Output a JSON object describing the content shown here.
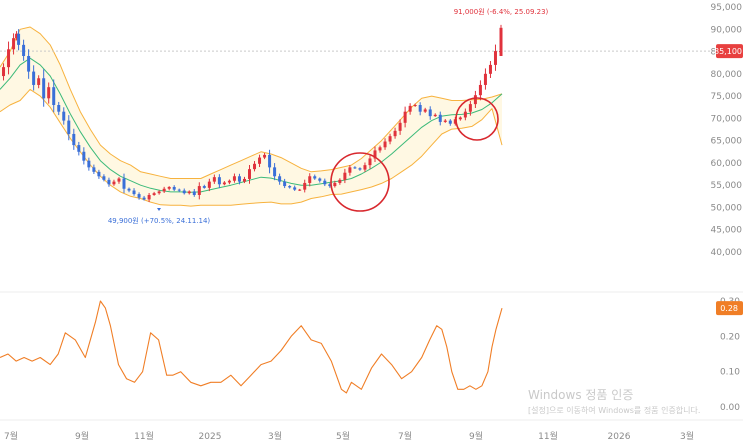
{
  "chart_data": [
    {
      "type": "candlestick",
      "ylim": [
        40000,
        95000
      ],
      "y_ticks": [
        "95,000",
        "90,000",
        "85,000",
        "80,000",
        "75,000",
        "70,000",
        "65,000",
        "60,000",
        "55,000",
        "50,000",
        "45,000",
        "40,000"
      ],
      "x_ticks": [
        "7월",
        "9월",
        "11월",
        "2025",
        "3월",
        "5월",
        "7월",
        "9월",
        "11월",
        "2026",
        "3월"
      ],
      "last_price_label": "85,100",
      "last_price": 85100,
      "high_annotation": "91,000원 (-6.4%, 25.09.23)",
      "low_annotation": "49,900원 (+70.5%, 24.11.14)",
      "series": [
        {
          "x": [
            0,
            5,
            10,
            15,
            18,
            20,
            25,
            30,
            35,
            40,
            45,
            50,
            55,
            60,
            65,
            70,
            75,
            80,
            85,
            90,
            95,
            100,
            105,
            110,
            115,
            120,
            125,
            130,
            135,
            140,
            145,
            150,
            155,
            160,
            165,
            170,
            175,
            180,
            185,
            190,
            195,
            200,
            205,
            210,
            215,
            220,
            225,
            230,
            235,
            240,
            245,
            250,
            255,
            260,
            265,
            270,
            275,
            280,
            285,
            290,
            295,
            300,
            305,
            310,
            315,
            320,
            325,
            330,
            335,
            340,
            345,
            350,
            355,
            360,
            365,
            370,
            375,
            380,
            385,
            390,
            395,
            400,
            405,
            410,
            415,
            420,
            425,
            430,
            435,
            440,
            445,
            450,
            455,
            460,
            465,
            470,
            475,
            480,
            485,
            490,
            495,
            500
          ],
          "values": [
            79500,
            81500,
            85500,
            88000,
            89000,
            86500,
            84000,
            80500,
            77500,
            79000,
            74500,
            77000,
            73000,
            71500,
            69500,
            66500,
            64000,
            62500,
            60500,
            59000,
            58000,
            57000,
            56200,
            55200,
            55800,
            56500,
            54200,
            53800,
            53000,
            52200,
            51800,
            52800,
            53200,
            53600,
            54200,
            54600,
            54000,
            53800,
            53200,
            53600,
            52800,
            54800,
            54400,
            55800,
            56800,
            55200,
            55600,
            56000,
            57000,
            55800,
            56400,
            58600,
            59800,
            61200,
            61800,
            59000,
            57000,
            55800,
            54800,
            54500,
            54000,
            54000,
            55500,
            57000,
            56500,
            56000,
            55200,
            54800,
            55500,
            56200,
            57800,
            59000,
            58800,
            58500,
            59500,
            61000,
            62800,
            63500,
            64800,
            66000,
            67200,
            69000,
            71500,
            72800,
            73000,
            71500,
            72000,
            70500,
            70800,
            69200,
            69500,
            68800,
            69800,
            70200,
            71500,
            73200,
            75200,
            77500,
            80000,
            82000,
            85100,
            85100
          ]
        },
        {
          "x": [
            0,
            10,
            20,
            30,
            40,
            50,
            60,
            70,
            80,
            90,
            100,
            110,
            120,
            130,
            140,
            150,
            160,
            170,
            180,
            190,
            200,
            210,
            220,
            230,
            240,
            250,
            260,
            270,
            280,
            290,
            300,
            310,
            320,
            330,
            340,
            350,
            360,
            370,
            380,
            390,
            400,
            410,
            420,
            430,
            440,
            450,
            460,
            470,
            480,
            490,
            500
          ],
          "values": [
            76500,
            79000,
            82000,
            83500,
            82000,
            79500,
            75500,
            71000,
            67000,
            63500,
            60500,
            58500,
            57000,
            56000,
            55000,
            54300,
            53800,
            53500,
            53500,
            53400,
            53500,
            54000,
            54500,
            55000,
            55600,
            56200,
            56800,
            56600,
            56000,
            55400,
            55000,
            55000,
            55300,
            55700,
            56000,
            56500,
            57500,
            58800,
            60200,
            62000,
            64000,
            66000,
            68000,
            69500,
            70500,
            70800,
            70900,
            71200,
            72000,
            73500,
            75500
          ]
        },
        {
          "x": [
            0,
            10,
            20,
            30,
            40,
            50,
            60,
            70,
            80,
            90,
            100,
            110,
            120,
            130,
            140,
            150,
            160,
            170,
            180,
            190,
            200,
            210,
            220,
            230,
            240,
            250,
            260,
            270,
            280,
            290,
            300,
            310,
            320,
            330,
            340,
            350,
            360,
            370,
            380,
            390,
            400,
            410,
            420,
            430,
            440,
            450,
            460,
            470,
            480,
            490,
            500
          ],
          "values": [
            81500,
            85000,
            90000,
            90500,
            89000,
            86500,
            82000,
            76500,
            71500,
            67500,
            64000,
            62000,
            60500,
            59500,
            58000,
            57500,
            57000,
            56500,
            56500,
            56500,
            56500,
            57500,
            58500,
            59500,
            60500,
            61500,
            62500,
            62000,
            61200,
            60000,
            58800,
            58000,
            58200,
            58500,
            59000,
            59500,
            61000,
            63000,
            65000,
            67500,
            70000,
            72500,
            74500,
            75000,
            74500,
            74000,
            74000,
            74200,
            74300,
            74800,
            75500
          ]
        },
        {
          "x": [
            0,
            10,
            20,
            30,
            40,
            50,
            60,
            70,
            80,
            90,
            100,
            110,
            120,
            130,
            140,
            150,
            160,
            170,
            180,
            190,
            200,
            210,
            220,
            230,
            240,
            250,
            260,
            270,
            280,
            290,
            300,
            310,
            320,
            330,
            340,
            350,
            360,
            370,
            380,
            390,
            400,
            410,
            420,
            430,
            440,
            450,
            460,
            470,
            480,
            490,
            500
          ],
          "values": [
            71500,
            73000,
            74000,
            76500,
            75000,
            72500,
            69000,
            65500,
            62500,
            59500,
            57000,
            55000,
            53500,
            52500,
            52000,
            51200,
            50600,
            50500,
            50500,
            50300,
            50500,
            50500,
            50500,
            50500,
            50700,
            50900,
            51100,
            51200,
            50800,
            50800,
            51200,
            52000,
            52400,
            52900,
            53000,
            53500,
            54000,
            54600,
            55400,
            56500,
            58000,
            59500,
            61500,
            64000,
            66500,
            67600,
            67800,
            68200,
            69700,
            72200,
            64000
          ]
        }
      ]
    },
    {
      "type": "line",
      "ylim": [
        0,
        0.3
      ],
      "y_ticks": [
        "0.30",
        "0.20",
        "0.10",
        "0.00"
      ],
      "last_value_label": "0.28",
      "series": [
        {
          "x": [
            0,
            8,
            16,
            24,
            32,
            40,
            50,
            58,
            65,
            75,
            85,
            95,
            100,
            105,
            110,
            118,
            126,
            134,
            142,
            150,
            158,
            166,
            172,
            180,
            190,
            200,
            210,
            220,
            230,
            240,
            250,
            260,
            270,
            280,
            290,
            300,
            310,
            320,
            330,
            340,
            345,
            350,
            360,
            370,
            380,
            390,
            400,
            410,
            420,
            428,
            435,
            440,
            445,
            450,
            456,
            462,
            468,
            474,
            480,
            486,
            490,
            494,
            497,
            500
          ],
          "values": [
            0.14,
            0.15,
            0.13,
            0.14,
            0.13,
            0.14,
            0.12,
            0.15,
            0.21,
            0.19,
            0.14,
            0.24,
            0.3,
            0.28,
            0.23,
            0.12,
            0.08,
            0.07,
            0.1,
            0.21,
            0.19,
            0.09,
            0.09,
            0.1,
            0.07,
            0.06,
            0.07,
            0.07,
            0.09,
            0.06,
            0.09,
            0.12,
            0.13,
            0.16,
            0.2,
            0.23,
            0.19,
            0.18,
            0.13,
            0.05,
            0.04,
            0.07,
            0.05,
            0.11,
            0.15,
            0.12,
            0.08,
            0.1,
            0.14,
            0.19,
            0.23,
            0.22,
            0.17,
            0.1,
            0.05,
            0.05,
            0.06,
            0.05,
            0.06,
            0.1,
            0.17,
            0.22,
            0.25,
            0.28
          ]
        }
      ]
    }
  ],
  "watermark": {
    "line1": "Windows 정품 인증",
    "line2": "[설정]으로 이동하여 Windows를 정품 인증합니다."
  },
  "colors": {
    "up": "#e0323c",
    "down": "#3a6fd8",
    "ma": "#3cba7a",
    "band": "#f7b23e",
    "band_fill": "#fff8e3",
    "indicator": "#f07e26",
    "circle": "#d8282e",
    "price_badge": "#e8403f",
    "indicator_badge": "#f07e26"
  }
}
